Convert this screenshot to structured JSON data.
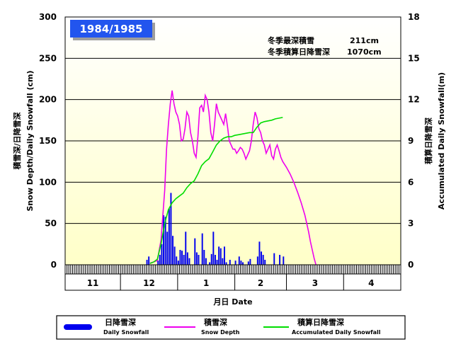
{
  "chart_data": {
    "type": "bar+line",
    "title": "1984/1985",
    "info": [
      {
        "label": "冬季最深積雪",
        "value": "211cm"
      },
      {
        "label": "冬季積算日降雪深",
        "value": "1070cm"
      }
    ],
    "ylabel_left": [
      "積雪深/日降雪深",
      "Snow Depth/Daily Snowfall (cm)"
    ],
    "ylabel_right": [
      "積算日降雪深",
      "Accumulated Daily Snowfall(m)"
    ],
    "xlabel": "月日 Date",
    "ylim_left": [
      0,
      300
    ],
    "ylim_right": [
      0,
      18
    ],
    "yticks_left": [
      "0",
      "50",
      "100",
      "150",
      "200",
      "250",
      "300"
    ],
    "yticks_right": [
      "0",
      "3",
      "6",
      "9",
      "12",
      "15",
      "18"
    ],
    "x_range_days": [
      0,
      182
    ],
    "months": [
      {
        "label": "11",
        "days": 30
      },
      {
        "label": "12",
        "days": 31
      },
      {
        "label": "1",
        "days": 31
      },
      {
        "label": "2",
        "days": 28
      },
      {
        "label": "3",
        "days": 31
      },
      {
        "label": "4",
        "days": 30
      }
    ],
    "series": [
      {
        "name": "日降雪深",
        "name_en": "Daily Snowfall",
        "axis": "left",
        "kind": "bar",
        "color": "#0000ee",
        "points": [
          [
            44,
            6
          ],
          [
            45,
            10
          ],
          [
            50,
            5
          ],
          [
            51,
            12
          ],
          [
            52,
            25
          ],
          [
            53,
            60
          ],
          [
            54,
            58
          ],
          [
            55,
            40
          ],
          [
            56,
            68
          ],
          [
            57,
            87
          ],
          [
            58,
            35
          ],
          [
            59,
            22
          ],
          [
            60,
            10
          ],
          [
            61,
            5
          ],
          [
            62,
            18
          ],
          [
            63,
            17
          ],
          [
            64,
            12
          ],
          [
            65,
            40
          ],
          [
            66,
            15
          ],
          [
            67,
            8
          ],
          [
            70,
            32
          ],
          [
            71,
            15
          ],
          [
            72,
            12
          ],
          [
            74,
            38
          ],
          [
            75,
            18
          ],
          [
            76,
            8
          ],
          [
            78,
            3
          ],
          [
            79,
            13
          ],
          [
            80,
            40
          ],
          [
            81,
            12
          ],
          [
            82,
            6
          ],
          [
            83,
            22
          ],
          [
            84,
            20
          ],
          [
            85,
            8
          ],
          [
            86,
            22
          ],
          [
            87,
            3
          ],
          [
            89,
            6
          ],
          [
            92,
            5
          ],
          [
            94,
            10
          ],
          [
            95,
            5
          ],
          [
            96,
            3
          ],
          [
            99,
            4
          ],
          [
            100,
            7
          ],
          [
            104,
            10
          ],
          [
            105,
            28
          ],
          [
            106,
            16
          ],
          [
            107,
            12
          ],
          [
            108,
            6
          ],
          [
            113,
            14
          ],
          [
            116,
            12
          ],
          [
            118,
            10
          ]
        ]
      },
      {
        "name": "積雪深",
        "name_en": "Snow Depth",
        "axis": "left",
        "kind": "line",
        "color": "#ee00ee",
        "points": [
          [
            46,
            2
          ],
          [
            50,
            5
          ],
          [
            52,
            30
          ],
          [
            54,
            90
          ],
          [
            55,
            140
          ],
          [
            56,
            170
          ],
          [
            57,
            195
          ],
          [
            58,
            211
          ],
          [
            59,
            195
          ],
          [
            60,
            185
          ],
          [
            61,
            180
          ],
          [
            62,
            170
          ],
          [
            63,
            150
          ],
          [
            64,
            152
          ],
          [
            65,
            165
          ],
          [
            66,
            185
          ],
          [
            67,
            180
          ],
          [
            68,
            160
          ],
          [
            69,
            150
          ],
          [
            70,
            135
          ],
          [
            71,
            130
          ],
          [
            72,
            155
          ],
          [
            73,
            190
          ],
          [
            74,
            193
          ],
          [
            75,
            185
          ],
          [
            76,
            205
          ],
          [
            77,
            200
          ],
          [
            78,
            185
          ],
          [
            79,
            160
          ],
          [
            80,
            150
          ],
          [
            81,
            170
          ],
          [
            82,
            195
          ],
          [
            83,
            185
          ],
          [
            84,
            180
          ],
          [
            85,
            175
          ],
          [
            86,
            170
          ],
          [
            87,
            183
          ],
          [
            88,
            168
          ],
          [
            89,
            150
          ],
          [
            90,
            145
          ],
          [
            91,
            140
          ],
          [
            92,
            140
          ],
          [
            93,
            135
          ],
          [
            94,
            138
          ],
          [
            95,
            142
          ],
          [
            96,
            140
          ],
          [
            97,
            135
          ],
          [
            98,
            128
          ],
          [
            99,
            133
          ],
          [
            100,
            138
          ],
          [
            101,
            150
          ],
          [
            102,
            170
          ],
          [
            103,
            185
          ],
          [
            104,
            178
          ],
          [
            105,
            165
          ],
          [
            106,
            160
          ],
          [
            107,
            150
          ],
          [
            108,
            145
          ],
          [
            109,
            135
          ],
          [
            110,
            140
          ],
          [
            111,
            145
          ],
          [
            112,
            132
          ],
          [
            113,
            128
          ],
          [
            114,
            140
          ],
          [
            115,
            145
          ],
          [
            116,
            138
          ],
          [
            117,
            130
          ],
          [
            118,
            125
          ],
          [
            120,
            118
          ],
          [
            122,
            110
          ],
          [
            124,
            100
          ],
          [
            126,
            88
          ],
          [
            128,
            75
          ],
          [
            130,
            60
          ],
          [
            132,
            40
          ],
          [
            133,
            28
          ],
          [
            134,
            18
          ],
          [
            135,
            8
          ],
          [
            136,
            0
          ]
        ]
      },
      {
        "name": "積算日降雪深",
        "name_en": "Accumulated Daily Snowfall",
        "axis": "right",
        "kind": "line",
        "color": "#00dd00",
        "points": [
          [
            46,
            0.1
          ],
          [
            48,
            0.2
          ],
          [
            50,
            0.4
          ],
          [
            52,
            1.5
          ],
          [
            54,
            3.0
          ],
          [
            56,
            4.0
          ],
          [
            58,
            4.5
          ],
          [
            60,
            4.8
          ],
          [
            62,
            5.0
          ],
          [
            64,
            5.2
          ],
          [
            66,
            5.6
          ],
          [
            68,
            5.9
          ],
          [
            70,
            6.1
          ],
          [
            72,
            6.6
          ],
          [
            74,
            7.2
          ],
          [
            76,
            7.5
          ],
          [
            78,
            7.7
          ],
          [
            80,
            8.2
          ],
          [
            82,
            8.7
          ],
          [
            84,
            9.0
          ],
          [
            86,
            9.2
          ],
          [
            88,
            9.3
          ],
          [
            90,
            9.3
          ],
          [
            92,
            9.4
          ],
          [
            94,
            9.45
          ],
          [
            96,
            9.5
          ],
          [
            98,
            9.55
          ],
          [
            100,
            9.6
          ],
          [
            102,
            9.6
          ],
          [
            104,
            10.0
          ],
          [
            106,
            10.3
          ],
          [
            108,
            10.4
          ],
          [
            110,
            10.45
          ],
          [
            112,
            10.5
          ],
          [
            114,
            10.6
          ],
          [
            116,
            10.65
          ],
          [
            118,
            10.7
          ]
        ]
      }
    ],
    "legend": {
      "placement": "bottom-center"
    },
    "grid": "horizontal"
  }
}
